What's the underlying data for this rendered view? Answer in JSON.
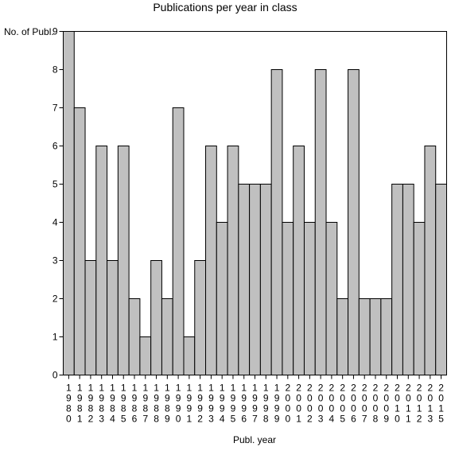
{
  "chart_data": {
    "type": "bar",
    "title": "Publications per year in class",
    "xlabel": "Publ. year",
    "ylabel": "No. of Publ.",
    "ylim": [
      0,
      9
    ],
    "yticks": [
      0,
      1,
      2,
      3,
      4,
      5,
      6,
      7,
      8,
      9
    ],
    "grid": false,
    "legend": "none",
    "bar_color": "#c0c0c0",
    "categories": [
      "1980",
      "1981",
      "1982",
      "1983",
      "1984",
      "1985",
      "1986",
      "1987",
      "1988",
      "1989",
      "1990",
      "1991",
      "1992",
      "1993",
      "1994",
      "1995",
      "1996",
      "1997",
      "1998",
      "1999",
      "2000",
      "2001",
      "2002",
      "2003",
      "2004",
      "2005",
      "2006",
      "2007",
      "2008",
      "2009",
      "2010",
      "2011",
      "2012",
      "2013",
      "2015"
    ],
    "values": [
      9,
      7,
      3,
      6,
      3,
      6,
      2,
      1,
      3,
      2,
      7,
      1,
      3,
      6,
      4,
      6,
      5,
      5,
      5,
      8,
      4,
      6,
      4,
      8,
      4,
      2,
      8,
      2,
      2,
      2,
      5,
      5,
      4,
      6,
      5
    ]
  }
}
